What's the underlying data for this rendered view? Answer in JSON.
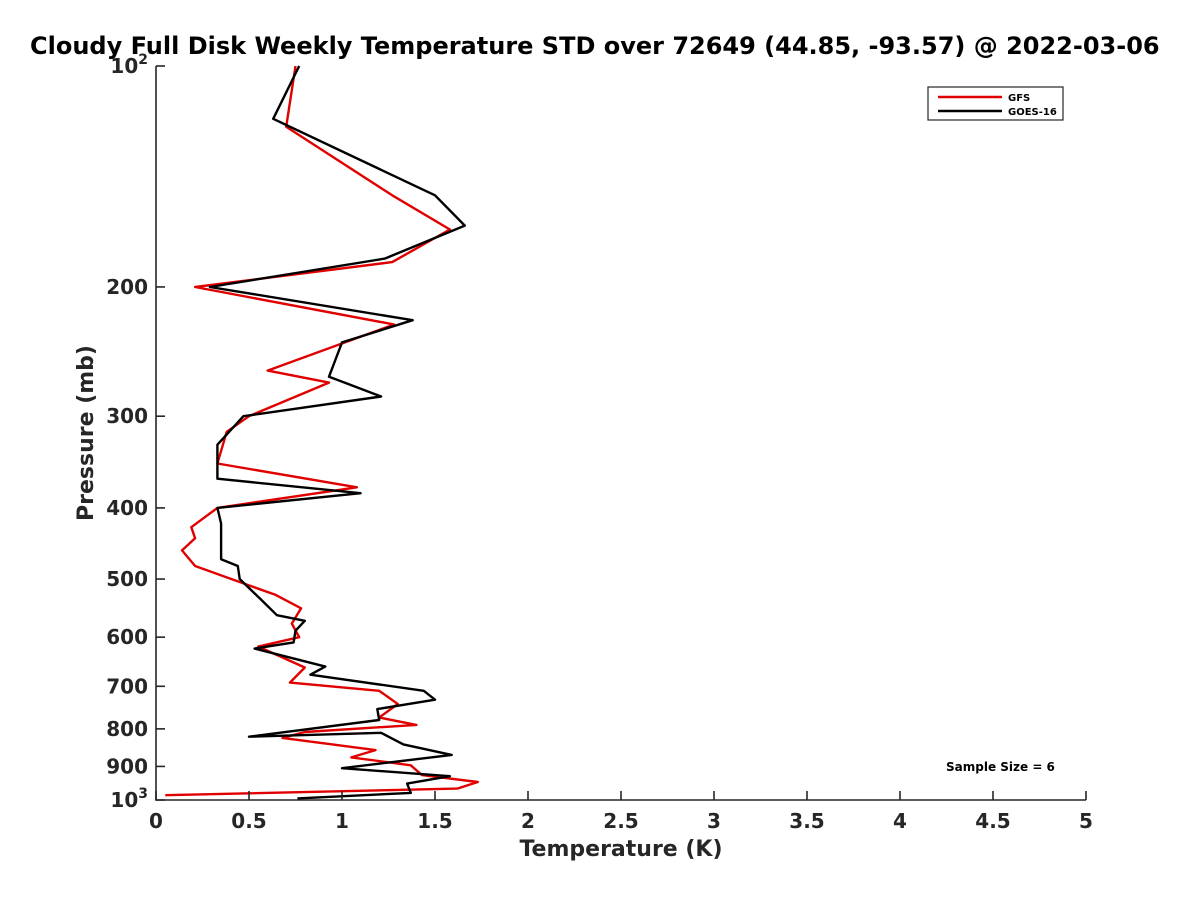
{
  "chart_data": {
    "type": "line",
    "title": "Cloudy Full Disk Weekly Temperature STD over 72649 (44.85, -93.57) @ 2022-03-06",
    "xlabel": "Temperature (K)",
    "ylabel": "Pressure (mb)",
    "xlim": [
      0,
      5
    ],
    "ylim": [
      100,
      1000
    ],
    "y_scale": "log",
    "y_reversed": true,
    "x_ticks": [
      0,
      0.5,
      1,
      1.5,
      2,
      2.5,
      3,
      3.5,
      4,
      4.5,
      5
    ],
    "x_tick_labels": [
      "0",
      "0.5",
      "1",
      "1.5",
      "2",
      "2.5",
      "3",
      "3.5",
      "4",
      "4.5",
      "5"
    ],
    "y_ticks": [
      100,
      200,
      300,
      400,
      500,
      600,
      700,
      800,
      900,
      1000
    ],
    "y_tick_labels": [
      {
        "base": "10",
        "exp": "2"
      },
      {
        "base": "200",
        "exp": ""
      },
      {
        "base": "300",
        "exp": ""
      },
      {
        "base": "400",
        "exp": ""
      },
      {
        "base": "500",
        "exp": ""
      },
      {
        "base": "600",
        "exp": ""
      },
      {
        "base": "700",
        "exp": ""
      },
      {
        "base": "800",
        "exp": ""
      },
      {
        "base": "900",
        "exp": ""
      },
      {
        "base": "10",
        "exp": "3"
      }
    ],
    "grid": false,
    "legend_position": "top-right",
    "annotation": "Sample Size = 6",
    "series": [
      {
        "name": "GFS",
        "color": "#e00000",
        "points": [
          [
            0.75,
            100
          ],
          [
            0.7,
            121
          ],
          [
            1.27,
            150
          ],
          [
            1.58,
            167
          ],
          [
            1.27,
            185
          ],
          [
            0.21,
            200
          ],
          [
            1.28,
            225
          ],
          [
            0.6,
            260
          ],
          [
            0.93,
            270
          ],
          [
            0.5,
            300
          ],
          [
            0.38,
            315
          ],
          [
            0.33,
            348
          ],
          [
            1.08,
            375
          ],
          [
            0.33,
            400
          ],
          [
            0.19,
            425
          ],
          [
            0.21,
            440
          ],
          [
            0.14,
            457
          ],
          [
            0.21,
            480
          ],
          [
            0.5,
            510
          ],
          [
            0.64,
            525
          ],
          [
            0.78,
            548
          ],
          [
            0.73,
            575
          ],
          [
            0.77,
            600
          ],
          [
            0.55,
            618
          ],
          [
            0.8,
            660
          ],
          [
            0.72,
            692
          ],
          [
            1.2,
            710
          ],
          [
            1.3,
            740
          ],
          [
            1.2,
            772
          ],
          [
            1.4,
            790
          ],
          [
            0.8,
            808
          ],
          [
            0.68,
            823
          ],
          [
            1.18,
            855
          ],
          [
            1.05,
            875
          ],
          [
            1.37,
            897
          ],
          [
            1.43,
            925
          ],
          [
            1.73,
            945
          ],
          [
            1.62,
            965
          ],
          [
            0.05,
            985
          ]
        ]
      },
      {
        "name": "GOES-16",
        "color": "#000000",
        "points": [
          [
            0.77,
            100
          ],
          [
            0.63,
            118
          ],
          [
            1.5,
            150
          ],
          [
            1.66,
            165
          ],
          [
            1.23,
            183
          ],
          [
            0.29,
            200
          ],
          [
            1.38,
            222
          ],
          [
            1.0,
            238
          ],
          [
            0.93,
            265
          ],
          [
            1.21,
            282
          ],
          [
            0.47,
            300
          ],
          [
            0.33,
            328
          ],
          [
            0.33,
            365
          ],
          [
            1.1,
            382
          ],
          [
            0.33,
            400
          ],
          [
            0.35,
            420
          ],
          [
            0.35,
            470
          ],
          [
            0.44,
            480
          ],
          [
            0.45,
            500
          ],
          [
            0.56,
            532
          ],
          [
            0.65,
            560
          ],
          [
            0.8,
            570
          ],
          [
            0.75,
            588
          ],
          [
            0.74,
            610
          ],
          [
            0.53,
            622
          ],
          [
            0.91,
            658
          ],
          [
            0.83,
            675
          ],
          [
            1.44,
            710
          ],
          [
            1.5,
            730
          ],
          [
            1.19,
            752
          ],
          [
            1.2,
            778
          ],
          [
            0.5,
            820
          ],
          [
            1.21,
            810
          ],
          [
            1.33,
            840
          ],
          [
            1.59,
            868
          ],
          [
            1.0,
            905
          ],
          [
            1.58,
            928
          ],
          [
            1.35,
            950
          ],
          [
            1.37,
            978
          ],
          [
            0.76,
            995
          ]
        ]
      }
    ]
  }
}
